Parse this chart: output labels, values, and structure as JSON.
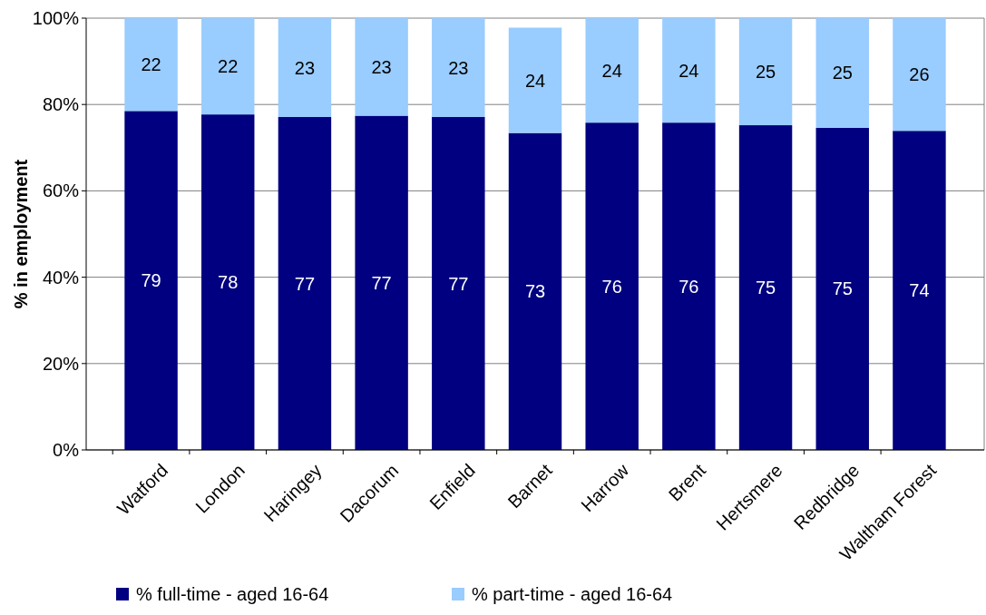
{
  "chart_data": {
    "type": "bar",
    "stacked": true,
    "ylabel": "% in employment",
    "categories": [
      "Watford",
      "London",
      "Haringey",
      "Dacorum",
      "Enfield",
      "Barnet",
      "Harrow",
      "Brent",
      "Hertsmere",
      "Redbridge",
      "Waltham Forest"
    ],
    "series": [
      {
        "name": "% full-time - aged 16-64",
        "color": "#000080",
        "values": [
          78.5,
          77.7,
          77.1,
          77.4,
          77.1,
          73.4,
          75.8,
          75.8,
          75.2,
          74.6,
          73.9
        ],
        "value_labels": [
          "79",
          "78",
          "77",
          "77",
          "77",
          "73",
          "76",
          "76",
          "75",
          "75",
          "74"
        ]
      },
      {
        "name": "% part-time - aged 16-64",
        "color": "#99ccff",
        "values": [
          21.5,
          22.3,
          22.9,
          22.6,
          22.9,
          24.4,
          24.2,
          24.2,
          24.8,
          25.4,
          26.1
        ],
        "value_labels": [
          "22",
          "22",
          "23",
          "23",
          "23",
          "24",
          "24",
          "24",
          "25",
          "25",
          "26"
        ]
      }
    ],
    "ylim": [
      0,
      100
    ],
    "yticks": [
      {
        "value": 0,
        "label": "0%"
      },
      {
        "value": 20,
        "label": "20%"
      },
      {
        "value": 40,
        "label": "40%"
      },
      {
        "value": 60,
        "label": "60%"
      },
      {
        "value": 80,
        "label": "80%"
      },
      {
        "value": 100,
        "label": "100%"
      }
    ],
    "grid": "y",
    "legend": "bottom"
  }
}
